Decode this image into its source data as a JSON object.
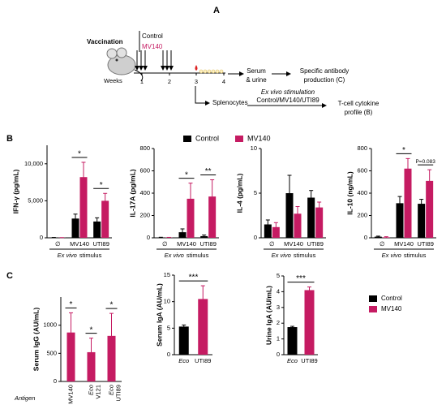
{
  "panels": [
    "A",
    "B",
    "C"
  ],
  "diagram": {
    "vaccination": "Vaccination",
    "groups": [
      {
        "name": "Control",
        "color": "#000000"
      },
      {
        "name": "MV140",
        "color": "#c51b62"
      }
    ],
    "weeks_label": "Weeks",
    "weeks": [
      "1",
      "2",
      "3",
      "4"
    ],
    "sample": [
      "Serum",
      "& urine"
    ],
    "outcome_c": [
      "Specific antibody",
      "production (C)"
    ],
    "splenocytes": "Splenocytes",
    "stimulation_title": "Ex vivo stimulation",
    "stimulation": "Control/MV140/UTI89",
    "outcome_b": [
      "T-cell cytokine",
      "profile (B)"
    ]
  },
  "legends": [
    {
      "items": [
        {
          "name": "Control",
          "color": "#000000"
        },
        {
          "name": "MV140",
          "color": "#c51b62"
        }
      ]
    },
    {
      "items": [
        {
          "name": "Control",
          "color": "#000000"
        },
        {
          "name": "MV140",
          "color": "#c51b62"
        }
      ]
    }
  ],
  "chart_data": [
    {
      "type": "bar",
      "ylabel": "IFN-γ (pg/mL)",
      "categories": [
        "∅",
        "MV140",
        "UTI89"
      ],
      "xlabel": {
        "italic": "Ex vivo",
        "text": "stimulus"
      },
      "series": [
        {
          "color": "#000000",
          "values": [
            30,
            2600,
            2200
          ],
          "errors": [
            20,
            600,
            500
          ]
        },
        {
          "color": "#c51b62",
          "values": [
            20,
            8200,
            5000
          ],
          "errors": [
            10,
            2000,
            1000
          ]
        }
      ],
      "significance": [
        null,
        "*",
        "*"
      ],
      "ylim": [
        0,
        12500
      ],
      "yticks": [
        0,
        {
          "value": 5000,
          "label": "5,000"
        },
        {
          "value": 10000,
          "label": "10,000"
        }
      ]
    },
    {
      "type": "bar",
      "ylabel": "IL-17A (pg/mL)",
      "categories": [
        "∅",
        "MV140",
        "UTI89"
      ],
      "xlabel": {
        "italic": "Ex vivo",
        "text": "stimulus"
      },
      "series": [
        {
          "color": "#000000",
          "values": [
            3,
            50,
            15
          ],
          "errors": [
            2,
            30,
            10
          ]
        },
        {
          "color": "#c51b62",
          "values": [
            2,
            350,
            370
          ],
          "errors": [
            2,
            140,
            150
          ]
        }
      ],
      "significance": [
        null,
        "*",
        "**"
      ],
      "ylim": [
        0,
        800
      ],
      "yticks": [
        0,
        200,
        400,
        600,
        800
      ]
    },
    {
      "type": "bar",
      "ylabel": "IL-4 (pg/mL)",
      "categories": [
        "∅",
        "MV140",
        "UTI89"
      ],
      "xlabel": {
        "italic": "Ex vivo",
        "text": "stimulus"
      },
      "series": [
        {
          "color": "#000000",
          "values": [
            1.5,
            5,
            4.5
          ],
          "errors": [
            0.5,
            2,
            0.8
          ]
        },
        {
          "color": "#c51b62",
          "values": [
            1.2,
            2.7,
            3.4
          ],
          "errors": [
            0.5,
            0.8,
            0.6
          ]
        }
      ],
      "significance": [
        null,
        null,
        null
      ],
      "ylim": [
        0,
        10
      ],
      "yticks": [
        0,
        5,
        10
      ]
    },
    {
      "type": "bar",
      "ylabel": "IL-10 (ng/mL)",
      "categories": [
        "∅",
        "MV140",
        "UTI89"
      ],
      "xlabel": {
        "italic": "Ex vivo",
        "text": "stimulus"
      },
      "series": [
        {
          "color": "#000000",
          "values": [
            10,
            310,
            305
          ],
          "errors": [
            5,
            60,
            40
          ]
        },
        {
          "color": "#c51b62",
          "values": [
            5,
            620,
            510
          ],
          "errors": [
            5,
            90,
            100
          ]
        }
      ],
      "significance": [
        null,
        "*",
        "P=0.083"
      ],
      "ylim": [
        0,
        800
      ],
      "yticks": [
        0,
        200,
        400,
        600,
        800
      ]
    },
    {
      "type": "bar",
      "ylabel": "Serum IgG (AU/mL)",
      "category_title": "Antigen",
      "categories": [
        "MV140",
        "Eco V121",
        "Eco UTI89"
      ],
      "italic_categories": [
        false,
        true,
        true
      ],
      "series": [
        {
          "colors": [
            "#c51b62",
            "#c51b62",
            "#c51b62"
          ],
          "values": [
            870,
            520,
            810
          ],
          "errors": [
            350,
            250,
            400
          ]
        }
      ],
      "significance": [
        "*",
        "*",
        "*"
      ],
      "ylim": [
        0,
        1500
      ],
      "yticks": [
        0,
        500,
        1000
      ]
    },
    {
      "type": "bar",
      "ylabel": "Serum IgA (AU/mL)",
      "categories": [
        "Eco",
        "UTI89"
      ],
      "italic_categories": [
        true,
        false
      ],
      "series": [
        {
          "colors": [
            "#000000",
            "#c51b62"
          ],
          "values": [
            5.3,
            10.5
          ],
          "errors": [
            0.3,
            2.5
          ]
        }
      ],
      "significance": "***",
      "ylim": [
        0,
        15
      ],
      "yticks": [
        0,
        5,
        10,
        15
      ]
    },
    {
      "type": "bar",
      "ylabel": "Urine IgA (AU/mL)",
      "categories": [
        "Eco",
        "UTI89"
      ],
      "italic_categories": [
        true,
        false
      ],
      "series": [
        {
          "colors": [
            "#000000",
            "#c51b62"
          ],
          "values": [
            1.75,
            4.1
          ],
          "errors": [
            0.05,
            0.2
          ]
        }
      ],
      "significance": "***",
      "ylim": [
        0,
        5
      ],
      "yticks": [
        0,
        1,
        2,
        3,
        4,
        5
      ]
    }
  ]
}
